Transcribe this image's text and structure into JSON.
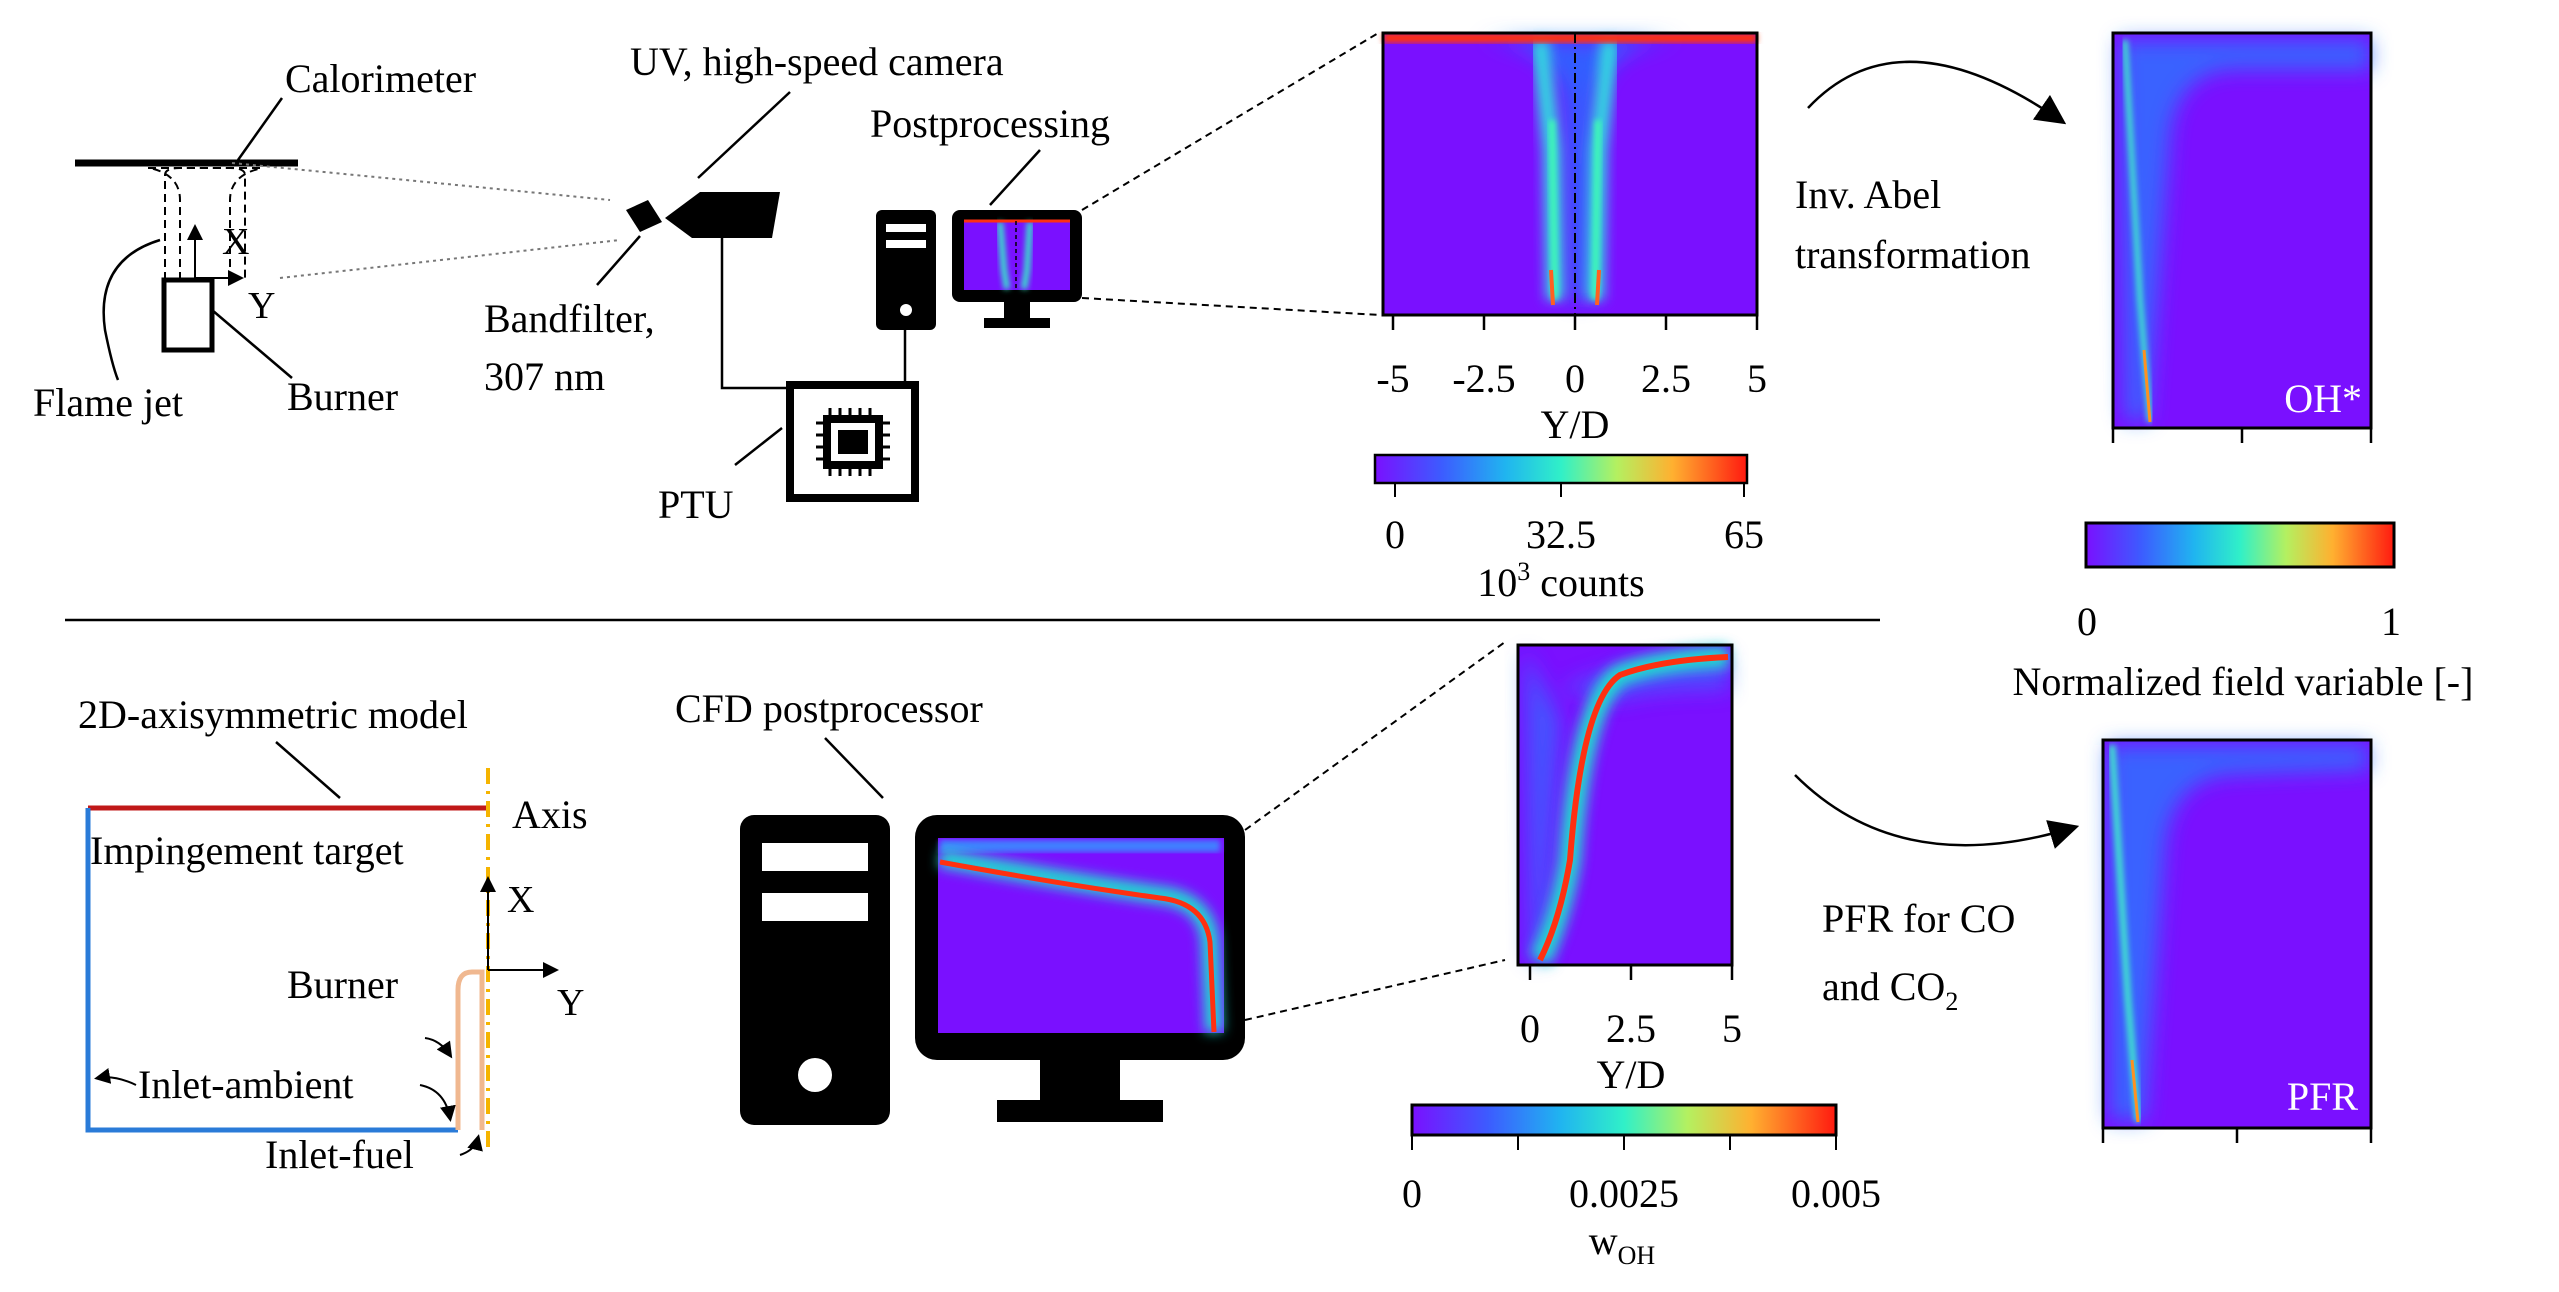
{
  "experiment": {
    "calorimeter": "Calorimeter",
    "x_axis": "X",
    "y_axis": "Y",
    "flame_jet": "Flame jet",
    "burner": "Burner",
    "camera": "UV, high-speed camera",
    "bandfilter_line1": "Bandfilter,",
    "bandfilter_line2": "307 nm",
    "postprocessing": "Postprocessing",
    "ptu": "PTU"
  },
  "exp_image": {
    "x_ticks": [
      "-5",
      "-2.5",
      "0",
      "2.5",
      "5"
    ],
    "x_label": "Y/D",
    "colorbar_ticks": [
      "0",
      "32.5",
      "65"
    ],
    "colorbar_label_base": "10",
    "colorbar_label_sup": "3",
    "colorbar_label_rest": " counts"
  },
  "abel": {
    "line1": "Inv. Abel",
    "line2": "transformation",
    "result_label": "OH*"
  },
  "norm_colorbar": {
    "ticks": [
      "0",
      "1"
    ],
    "label": "Normalized field variable [-]"
  },
  "model": {
    "title": "2D-axisymmetric model",
    "target": "Impingement target",
    "axis": "Axis",
    "x_axis": "X",
    "y_axis": "Y",
    "burner": "Burner",
    "inlet_ambient": "Inlet-ambient",
    "inlet_fuel": "Inlet-fuel"
  },
  "cfd": {
    "label": "CFD postprocessor",
    "x_ticks": [
      "0",
      "2.5",
      "5"
    ],
    "x_label": "Y/D",
    "colorbar_ticks": [
      "0",
      "0.0025",
      "0.005"
    ],
    "colorbar_label_base": "w",
    "colorbar_label_sub": "OH"
  },
  "pfr": {
    "line1": "PFR for CO",
    "line2_base": "and CO",
    "line2_sub": "2",
    "result_label": "PFR"
  },
  "colors": {
    "field_background": "#7a10ff",
    "jet_red": "#ff3010",
    "target_red": "#c01818",
    "wall_blue": "#2a7bd8",
    "axis_orange": "#f5b400",
    "burner_tan": "#f0b890"
  }
}
